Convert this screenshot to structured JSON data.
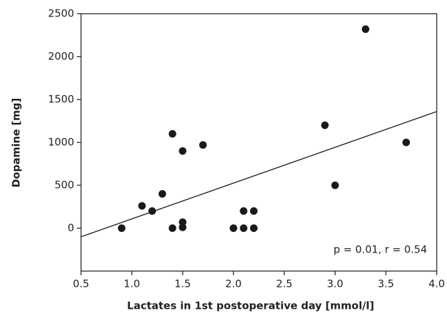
{
  "chart_data": {
    "type": "scatter",
    "x_label": "Lactates in 1st postoperative day [mmol/l]",
    "y_label": "Dopamine [mg]",
    "annotation": "p = 0.01, r = 0.54",
    "color": "#1a1a1a",
    "x": [
      0.9,
      1.1,
      1.2,
      1.3,
      1.4,
      1.4,
      1.5,
      1.5,
      1.5,
      1.7,
      2.0,
      2.1,
      2.1,
      2.2,
      2.2,
      2.9,
      3.0,
      3.3,
      3.7
    ],
    "y": [
      0,
      260,
      200,
      400,
      1100,
      0,
      900,
      70,
      10,
      970,
      0,
      200,
      0,
      200,
      0,
      1200,
      500,
      2320,
      1000
    ],
    "trendline": {
      "x": [
        0.5,
        4.0
      ],
      "y": [
        -100,
        1360
      ]
    },
    "xlim": [
      0.5,
      4.0
    ],
    "ylim": [
      -500,
      2500
    ],
    "xticks": [
      0.5,
      {
        "value": 1,
        "label": "1.0"
      },
      1.5,
      {
        "value": 2,
        "label": "2.0"
      },
      2.5,
      {
        "value": 3,
        "label": "3.0"
      },
      3.5,
      {
        "value": 4,
        "label": "4.0"
      }
    ],
    "yticks": [
      0,
      500,
      1000,
      1500,
      2000,
      2500
    ]
  }
}
